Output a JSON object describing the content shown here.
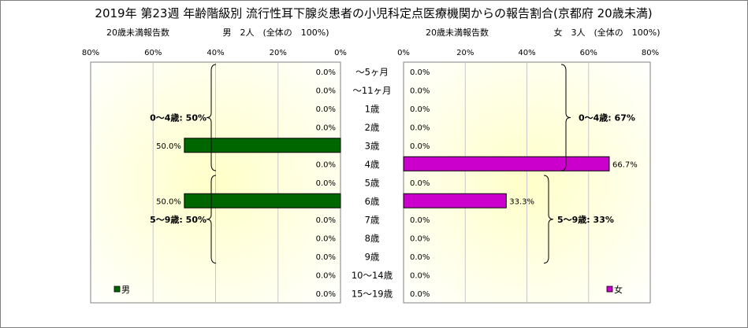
{
  "title": "2019年 第23週 年齢階級別 流行性耳下腺炎患者の小児科定点医療機関からの報告割合(京都府 20歳未満)",
  "left_panel": {
    "subheader": "20歳未満報告数",
    "summary": "男　2人　(全体の　100%)"
  },
  "right_panel": {
    "subheader": "20歳未満報告数",
    "summary": "女　3人　(全体の　100%)"
  },
  "chart_data": {
    "type": "bar",
    "orientation": "horizontal-butterfly",
    "title": "2019年 第23週 年齢階級別 流行性耳下腺炎患者の小児科定点医療機関からの報告割合(京都府 20歳未満)",
    "categories": [
      "～5ヶ月",
      "～11ヶ月",
      "1歳",
      "2歳",
      "3歳",
      "4歳",
      "5歳",
      "6歳",
      "7歳",
      "8歳",
      "9歳",
      "10～14歳",
      "15～19歳"
    ],
    "series": [
      {
        "name": "男",
        "color": "#006600",
        "values": [
          0.0,
          0.0,
          0.0,
          0.0,
          50.0,
          0.0,
          0.0,
          50.0,
          0.0,
          0.0,
          0.0,
          0.0,
          0.0
        ],
        "labels": [
          "0.0%",
          "0.0%",
          "0.0%",
          "0.0%",
          "50.0%",
          "0.0%",
          "0.0%",
          "50.0%",
          "0.0%",
          "0.0%",
          "0.0%",
          "0.0%",
          "0.0%"
        ]
      },
      {
        "name": "女",
        "color": "#cc00cc",
        "values": [
          0.0,
          0.0,
          0.0,
          0.0,
          0.0,
          66.7,
          0.0,
          33.3,
          0.0,
          0.0,
          0.0,
          0.0,
          0.0
        ],
        "labels": [
          "0.0%",
          "0.0%",
          "0.0%",
          "0.0%",
          "0.0%",
          "66.7%",
          "0.0%",
          "33.3%",
          "0.0%",
          "0.0%",
          "0.0%",
          "0.0%",
          "0.0%"
        ]
      }
    ],
    "xlim": [
      0,
      80
    ],
    "ticks": [
      0,
      20,
      40,
      60,
      80
    ],
    "tick_labels": [
      "0%",
      "20%",
      "40%",
      "60%",
      "80%"
    ],
    "groups": {
      "male": [
        {
          "label": "0～4歳: 50%",
          "from": 0,
          "to": 5
        },
        {
          "label": "5～9歳: 50%",
          "from": 6,
          "to": 10
        }
      ],
      "female": [
        {
          "label": "0～4歳: 67%",
          "from": 0,
          "to": 5
        },
        {
          "label": "5～9歳: 33%",
          "from": 6,
          "to": 10
        }
      ]
    },
    "grid": true,
    "legend": [
      {
        "label": "男",
        "position": "bottom-left"
      },
      {
        "label": "女",
        "position": "bottom-right"
      }
    ]
  }
}
